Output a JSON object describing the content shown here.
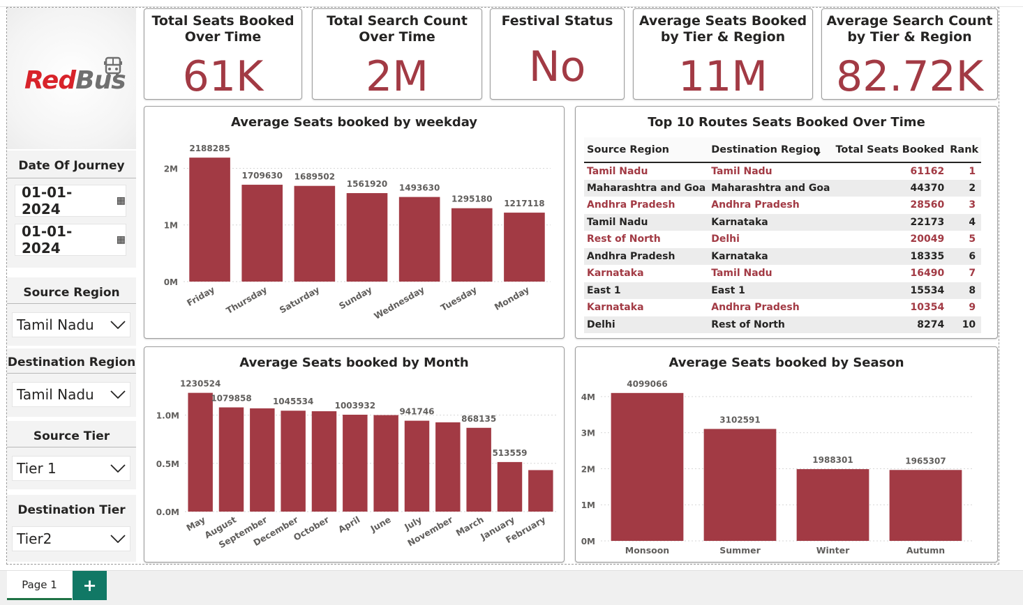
{
  "kpis": [
    {
      "title": "Total Seats Booked Over Time",
      "value": "61K"
    },
    {
      "title": "Total Search Count Over Time",
      "value": "2M"
    },
    {
      "title": "Festival Status",
      "value": "No"
    },
    {
      "title": "Average Seats Booked by Tier & Region",
      "value": "11M"
    },
    {
      "title": "Average Search Count by Tier & Region",
      "value": "82.72K"
    }
  ],
  "logo": {
    "part1": "Red",
    "part2": "Bus"
  },
  "slicers": {
    "date_title": "Date Of Journey",
    "date_from": "01-01-2024",
    "date_to": "01-01-2024",
    "source_region_title": "Source Region",
    "source_region_value": "Tamil Nadu",
    "destination_region_title": "Destination Region",
    "destination_region_value": "Tamil Nadu",
    "source_tier_title": "Source Tier",
    "source_tier_value": "Tier 1",
    "destination_tier_title": "Destination Tier",
    "destination_tier_value": "Tier2"
  },
  "table": {
    "title": "Top 10 Routes Seats Booked Over Time",
    "columns": [
      "Source Region",
      "Destination Region",
      "Total Seats Booked",
      "Rank"
    ],
    "rows": [
      [
        "Tamil Nadu",
        "Tamil Nadu",
        "61162",
        "1"
      ],
      [
        "Maharashtra and Goa",
        "Maharashtra and Goa",
        "44370",
        "2"
      ],
      [
        "Andhra Pradesh",
        "Andhra Pradesh",
        "28560",
        "3"
      ],
      [
        "Tamil Nadu",
        "Karnataka",
        "22173",
        "4"
      ],
      [
        "Rest of North",
        "Delhi",
        "20049",
        "5"
      ],
      [
        "Andhra Pradesh",
        "Karnataka",
        "18335",
        "6"
      ],
      [
        "Karnataka",
        "Tamil Nadu",
        "16490",
        "7"
      ],
      [
        "East 1",
        "East 1",
        "15534",
        "8"
      ],
      [
        "Karnataka",
        "Andhra Pradesh",
        "10354",
        "9"
      ],
      [
        "Delhi",
        "Rest of North",
        "8274",
        "10"
      ]
    ]
  },
  "chart_data": [
    {
      "id": "weekday",
      "type": "bar",
      "title": "Average Seats booked by weekday",
      "categories": [
        "Friday",
        "Thursday",
        "Saturday",
        "Sunday",
        "Wednesday",
        "Tuesday",
        "Monday"
      ],
      "values": [
        2188285,
        1709630,
        1689502,
        1561920,
        1493630,
        1295180,
        1217118
      ],
      "data_labels": [
        "2188285",
        "1709630",
        "1689502",
        "1561920",
        "1493630",
        "1295180",
        "1217118"
      ],
      "yticks": [
        0,
        1000000,
        2000000
      ],
      "ytick_labels": [
        "0M",
        "1M",
        "2M"
      ],
      "ylim": [
        0,
        2350000
      ],
      "grid": true,
      "rotate_labels": true,
      "color": "#a23a44"
    },
    {
      "id": "month",
      "type": "bar",
      "title": "Average Seats booked by Month",
      "categories": [
        "May",
        "August",
        "September",
        "December",
        "October",
        "April",
        "June",
        "July",
        "November",
        "March",
        "January",
        "February"
      ],
      "values": [
        1230524,
        1079858,
        1070000,
        1045534,
        1040000,
        1003932,
        1000000,
        941746,
        925000,
        868135,
        513559,
        430000
      ],
      "data_labels": [
        "1230524",
        "1079858",
        "",
        "1045534",
        "",
        "1003932",
        "",
        "941746",
        "",
        "868135",
        "513559",
        ""
      ],
      "yticks": [
        0,
        500000,
        1000000
      ],
      "ytick_labels": [
        "0.0M",
        "0.5M",
        "1.0M"
      ],
      "ylim": [
        0,
        1300000
      ],
      "grid": true,
      "rotate_labels": true,
      "color": "#a23a44"
    },
    {
      "id": "season",
      "type": "bar",
      "title": "Average Seats booked by Season",
      "categories": [
        "Monsoon",
        "Summer",
        "Winter",
        "Autumn"
      ],
      "values": [
        4099066,
        3102591,
        1988301,
        1965307
      ],
      "data_labels": [
        "4099066",
        "3102591",
        "1988301",
        "1965307"
      ],
      "yticks": [
        0,
        1000000,
        2000000,
        3000000,
        4000000
      ],
      "ytick_labels": [
        "0M",
        "1M",
        "2M",
        "3M",
        "4M"
      ],
      "ylim": [
        0,
        4250000
      ],
      "grid": true,
      "rotate_labels": false,
      "color": "#a23a44"
    }
  ],
  "pages": {
    "tab_label": "Page 1",
    "add_label": "+"
  }
}
